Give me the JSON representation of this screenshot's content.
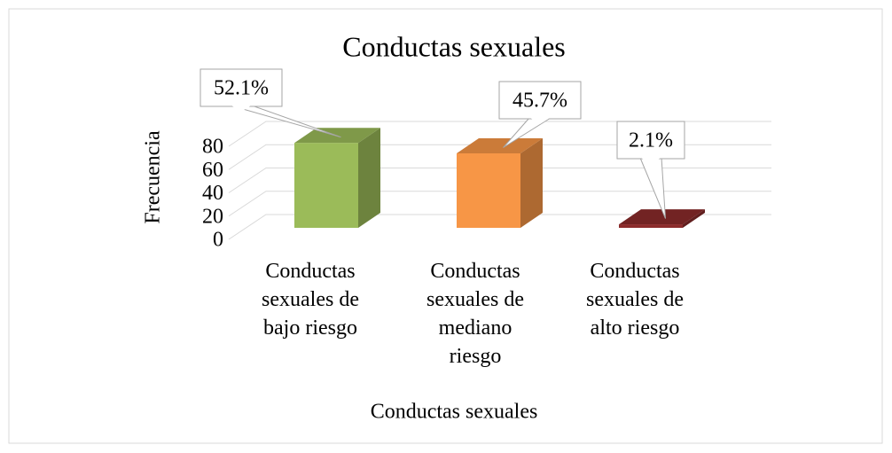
{
  "chart_data": {
    "type": "bar3d",
    "title": "Conductas sexuales",
    "x_label": "Conductas sexuales",
    "y_label": "Frecuencia",
    "categories": [
      "Conductas sexuales de bajo riesgo",
      "Conductas sexuales de mediano riesgo",
      "Conductas sexuales de alto riesgo"
    ],
    "values": [
      73,
      64,
      3
    ],
    "annotations": [
      "52.1%",
      "45.7%",
      "2.1%"
    ],
    "colors": [
      "#9bbb59",
      "#f79646",
      "#8b2b2b"
    ],
    "ylim": [
      0,
      80
    ],
    "yticks": [
      0,
      20,
      40,
      60,
      80
    ],
    "grid": true
  }
}
